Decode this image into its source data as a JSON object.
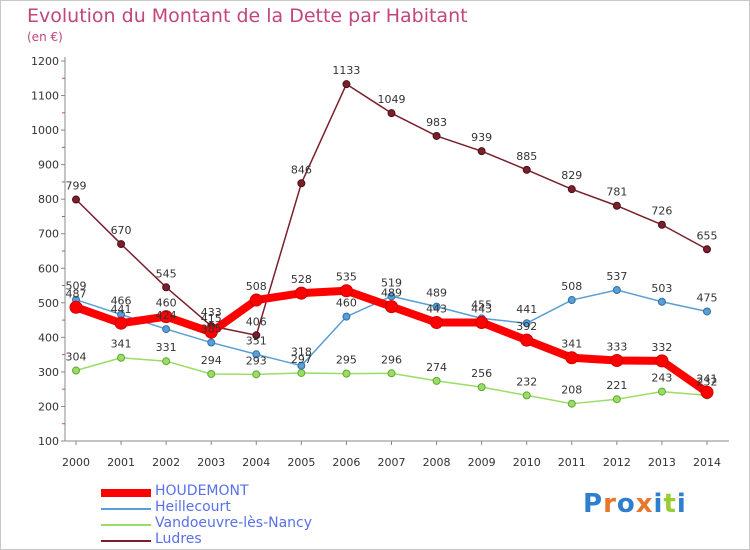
{
  "title": "Evolution du Montant de la Dette par Habitant",
  "subtitle": "(en €)",
  "logo_text": "Proxiti",
  "chart_data": {
    "type": "line",
    "x": [
      "2000",
      "2001",
      "2002",
      "2003",
      "2004",
      "2005",
      "2006",
      "2007",
      "2008",
      "2009",
      "2010",
      "2011",
      "2012",
      "2013",
      "2014"
    ],
    "ylim": [
      100,
      1200
    ],
    "yticks": [
      100,
      200,
      300,
      400,
      500,
      600,
      700,
      800,
      900,
      1000,
      1100,
      1200
    ],
    "grid": false,
    "legend_position": "bottom-left",
    "series": [
      {
        "name": "HOUDEMONT",
        "color": "#ff0000",
        "values": [
          487,
          441,
          460,
          415,
          508,
          528,
          535,
          489,
          443,
          443,
          392,
          341,
          333,
          332,
          241
        ],
        "labels": [
          "487",
          "441",
          "460",
          "415",
          "508",
          "528",
          "535",
          "489",
          "443",
          "443",
          "392",
          "341",
          "333",
          "332",
          "241"
        ]
      },
      {
        "name": "Heillecourt",
        "color": "#5a9fd4",
        "values": [
          509,
          466,
          424,
          385,
          351,
          318,
          460,
          519,
          489,
          455,
          441,
          508,
          537,
          503,
          475
        ],
        "labels": [
          "509",
          "466",
          "424",
          "385",
          "351",
          "318",
          "460",
          "519",
          "489",
          "455",
          "441",
          "508",
          "537",
          "503",
          "475"
        ]
      },
      {
        "name": "Vandoeuvre-lès-Nancy",
        "color": "#99dd66",
        "values": [
          304,
          341,
          331,
          294,
          293,
          297,
          295,
          296,
          274,
          256,
          232,
          208,
          221,
          243,
          232
        ],
        "labels": [
          "304",
          "341",
          "331",
          "294",
          "293",
          "297",
          "295",
          "296",
          "274",
          "256",
          "232",
          "208",
          "221",
          "243",
          "232"
        ]
      },
      {
        "name": "Ludres",
        "color": "#7a1f2b",
        "values": [
          799,
          670,
          545,
          433,
          406,
          846,
          1133,
          1049,
          983,
          939,
          885,
          829,
          781,
          726,
          655
        ],
        "labels": [
          "799",
          "670",
          "545",
          "433",
          "406",
          "846",
          "1133",
          "1049",
          "983",
          "939",
          "885",
          "829",
          "781",
          "726",
          "655"
        ]
      }
    ]
  }
}
